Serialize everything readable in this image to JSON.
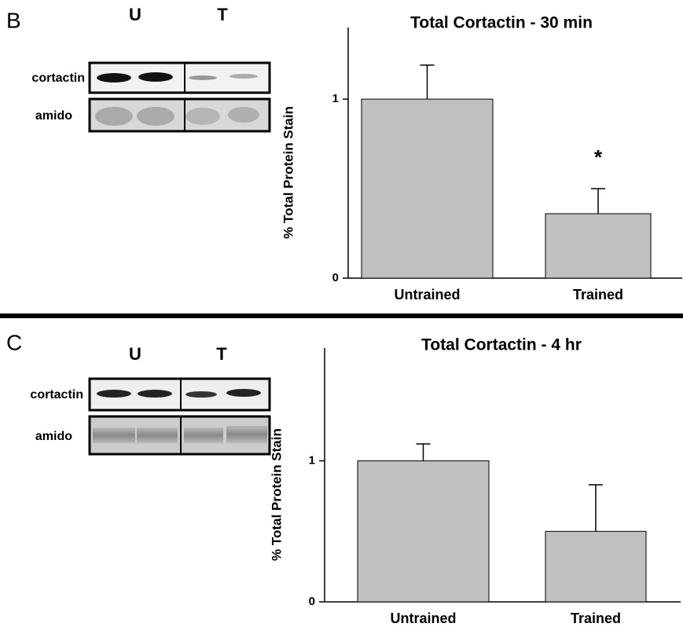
{
  "panels": [
    {
      "label": "B",
      "blot": {
        "groups": [
          "U",
          "T"
        ],
        "rows": [
          "cortactin",
          "amido"
        ]
      }
    },
    {
      "label": "C",
      "blot": {
        "groups": [
          "U",
          "T"
        ],
        "rows": [
          "cortactin",
          "amido"
        ]
      }
    }
  ],
  "chart_data": [
    {
      "type": "bar",
      "title": "Total Cortactin - 30 min",
      "y_label": "% Total Protein Stain",
      "categories": [
        "Untrained",
        "Trained"
      ],
      "values": [
        1,
        0.36
      ],
      "errors": [
        0.19,
        0.14
      ],
      "color": "#c0c0c0",
      "ylim": [
        0,
        1.4
      ],
      "yticks": [
        0,
        1
      ],
      "annotations": [
        {
          "text": "*",
          "category": "Trained"
        }
      ]
    },
    {
      "type": "bar",
      "title": "Total Cortactin - 4 hr",
      "y_label": "% Total Protein Stain",
      "categories": [
        "Untrained",
        "Trained"
      ],
      "values": [
        1,
        0.5
      ],
      "errors": [
        0.12,
        0.33
      ],
      "color": "#c0c0c0",
      "ylim": [
        0,
        1.8
      ],
      "yticks": [
        0,
        1
      ]
    }
  ]
}
